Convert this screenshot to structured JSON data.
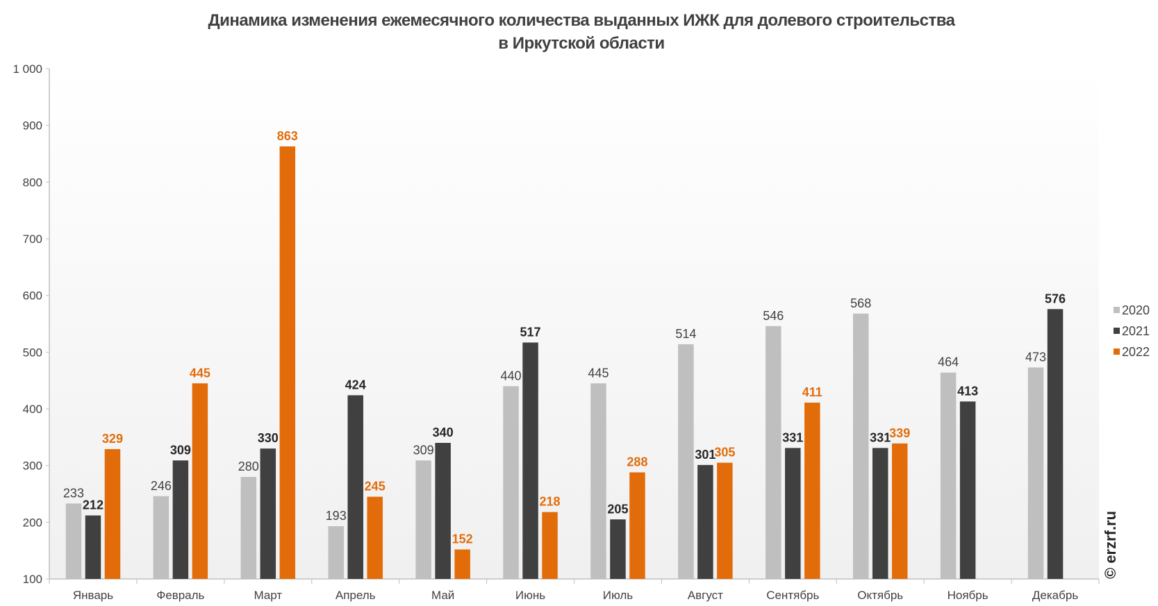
{
  "chart_data": {
    "type": "bar",
    "title": "Динамика изменения ежемесячного количества выданных ИЖК для долевого строительства",
    "subtitle": "в Иркутской области",
    "xlabel": "",
    "ylabel": "",
    "ylim": [
      100,
      1000
    ],
    "yticks": [
      100,
      200,
      300,
      400,
      500,
      600,
      700,
      800,
      900,
      1000
    ],
    "ytick_labels": [
      "100",
      "200",
      "300",
      "400",
      "500",
      "600",
      "700",
      "800",
      "900",
      "1 000"
    ],
    "grid": false,
    "legend_position": "right",
    "categories": [
      "Январь",
      "Февраль",
      "Март",
      "Апрель",
      "Май",
      "Июнь",
      "Июль",
      "Август",
      "Сентябрь",
      "Октябрь",
      "Ноябрь",
      "Декабрь"
    ],
    "series": [
      {
        "name": "2020",
        "color": "#bfbfbf",
        "label_color": "#404040",
        "values": [
          233,
          246,
          280,
          193,
          309,
          440,
          445,
          514,
          546,
          568,
          464,
          473
        ]
      },
      {
        "name": "2021",
        "color": "#404040",
        "label_color": "#262626",
        "values": [
          212,
          309,
          330,
          424,
          340,
          517,
          205,
          301,
          331,
          331,
          413,
          576
        ]
      },
      {
        "name": "2022",
        "color": "#e36c0a",
        "label_color": "#e36c0a",
        "values": [
          329,
          445,
          863,
          245,
          152,
          218,
          288,
          305,
          411,
          339,
          null,
          null
        ]
      }
    ]
  },
  "watermark": "© erzrf.ru"
}
